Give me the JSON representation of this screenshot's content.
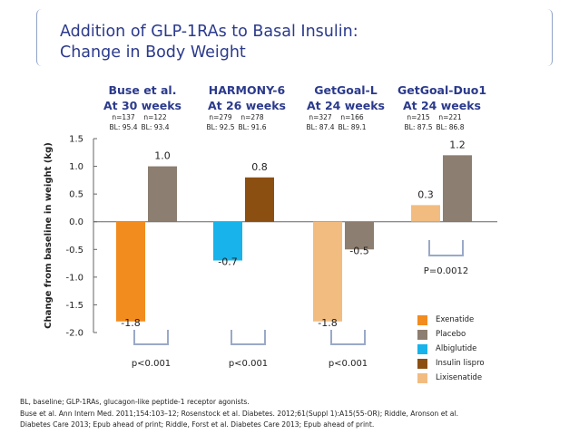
{
  "title_lines": [
    "Addition of GLP-1RAs to Basal Insulin:",
    "Change in Body Weight"
  ],
  "chart_data": {
    "type": "bar",
    "ylabel": "Change from baseline in weight (kg)",
    "ylim": [
      -2.0,
      1.5
    ],
    "yticks": [
      "1.5",
      "1.0",
      "0.5",
      "0.0",
      "-0.5",
      "-1.0",
      "-1.5",
      "-2.0"
    ],
    "ytick_values": [
      1.5,
      1.0,
      0.5,
      0.0,
      -0.5,
      -1.0,
      -1.5,
      -2.0
    ],
    "groups": [
      {
        "title": [
          "Buse et al.",
          "At 30 weeks"
        ],
        "p": "p<0.001",
        "bars": [
          {
            "series": "Exenatide",
            "n": "n=137",
            "bl": "BL: 95.4",
            "value": -1.8,
            "label": "-1.8"
          },
          {
            "series": "Placebo",
            "n": "n=122",
            "bl": "BL: 93.4",
            "value": 1.0,
            "label": "1.0"
          }
        ]
      },
      {
        "title": [
          "HARMONY-6",
          "At 26 weeks"
        ],
        "p": "p<0.001",
        "bars": [
          {
            "series": "Albiglutide",
            "n": "n=279",
            "bl": "BL: 92.5",
            "value": -0.7,
            "label": "-0.7"
          },
          {
            "series": "Insulin lispro",
            "n": "n=278",
            "bl": "BL: 91.6",
            "value": 0.8,
            "label": "0.8"
          }
        ]
      },
      {
        "title": [
          "GetGoal-L",
          "At 24 weeks"
        ],
        "p": "p<0.001",
        "bars": [
          {
            "series": "Lixisenatide",
            "n": "n=327",
            "bl": "BL: 87.4",
            "value": -1.8,
            "label": "-1.8"
          },
          {
            "series": "Placebo",
            "n": "n=166",
            "bl": "BL: 89.1",
            "value": -0.5,
            "label": "-0.5"
          }
        ]
      },
      {
        "title": [
          "GetGoal-Duo1",
          "At 24 weeks"
        ],
        "p": "P=0.0012",
        "bars": [
          {
            "series": "Lixisenatide",
            "n": "n=215",
            "bl": "BL: 87.5",
            "value": 0.3,
            "label": "0.3"
          },
          {
            "series": "Placebo",
            "n": "n=221",
            "bl": "BL: 86.8",
            "value": 1.2,
            "label": "1.2"
          }
        ]
      }
    ],
    "legend": [
      {
        "name": "Exenatide",
        "color": "#f28c1e"
      },
      {
        "name": "Placebo",
        "color": "#8c7e70"
      },
      {
        "name": "Albiglutide",
        "color": "#17b3ea"
      },
      {
        "name": "Insulin lispro",
        "color": "#8c4f12"
      },
      {
        "name": "Lixisenatide",
        "color": "#f2bc80"
      }
    ]
  },
  "footnotes": [
    "BL, baseline; GLP-1RAs, glucagon-like peptide-1 receptor agonists.",
    "Buse et al. Ann Intern Med. 2011;154:103–12; Rosenstock et al. Diabetes. 2012;61(Suppl 1):A15(55-OR); Riddle, Aronson et al.",
    "Diabetes Care 2013; Epub ahead of print; Riddle, Forst et al. Diabetes Care 2013; Epub ahead of print."
  ]
}
